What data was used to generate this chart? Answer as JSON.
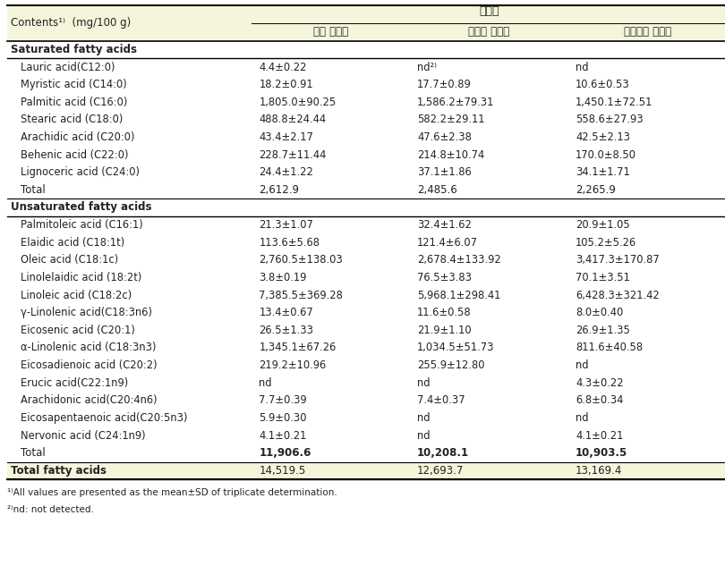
{
  "header_bg": "#f5f5dc",
  "header_text_color": "#333333",
  "body_bg": "#ffffff",
  "section_header_bg": "#ffffff",
  "col0_header": "Contents¹⁾  (mg/100 g)",
  "col_group_header": "청국장",
  "col1_header": "인당 청국장",
  "col2_header": "산양삼 청국장",
  "col3_header": "홍산양삼 청국장",
  "footnote1": "¹⁾All values are presented as the mean±SD of triplicate determination.",
  "footnote2": "²⁾nd: not detected.",
  "rows": [
    {
      "type": "section",
      "col0": "Saturated fatty acids",
      "col1": "",
      "col2": "",
      "col3": ""
    },
    {
      "type": "data",
      "col0": "Lauric acid(C12:0)",
      "col1": "4.4±0.22",
      "col2": "nd²⁾",
      "col3": "nd"
    },
    {
      "type": "data",
      "col0": "Myristic acid (C14:0)",
      "col1": "18.2±0.91",
      "col2": "17.7±0.89",
      "col3": "10.6±0.53"
    },
    {
      "type": "data",
      "col0": "Palmitic acid (C16:0)",
      "col1": "1,805.0±90.25",
      "col2": "1,586.2±79.31",
      "col3": "1,450.1±72.51"
    },
    {
      "type": "data",
      "col0": "Stearic acid (C18:0)",
      "col1": "488.8±24.44",
      "col2": "582.2±29.11",
      "col3": "558.6±27.93"
    },
    {
      "type": "data",
      "col0": "Arachidic acid (C20:0)",
      "col1": "43.4±2.17",
      "col2": "47.6±2.38",
      "col3": "42.5±2.13"
    },
    {
      "type": "data",
      "col0": "Behenic acid (C22:0)",
      "col1": "228.7±11.44",
      "col2": "214.8±10.74",
      "col3": "170.0±8.50"
    },
    {
      "type": "data",
      "col0": "Lignoceric acid (C24:0)",
      "col1": "24.4±1.22",
      "col2": "37.1±1.86",
      "col3": "34.1±1.71"
    },
    {
      "type": "total",
      "col0": "Total",
      "col1": "2,612.9",
      "col2": "2,485.6",
      "col3": "2,265.9"
    },
    {
      "type": "section",
      "col0": "Unsaturated fatty acids",
      "col1": "",
      "col2": "",
      "col3": ""
    },
    {
      "type": "data",
      "col0": "Palmitoleic acid (C16:1)",
      "col1": "21.3±1.07",
      "col2": "32.4±1.62",
      "col3": "20.9±1.05"
    },
    {
      "type": "data",
      "col0": "Elaidic acid (C18:1t)",
      "col1": "113.6±5.68",
      "col2": "121.4±6.07",
      "col3": "105.2±5.26"
    },
    {
      "type": "data",
      "col0": "Oleic acid (C18:1c)",
      "col1": "2,760.5±138.03",
      "col2": "2,678.4±133.92",
      "col3": "3,417.3±170.87"
    },
    {
      "type": "data",
      "col0": "Linolelaidic acid (18:2t)",
      "col1": "3.8±0.19",
      "col2": "76.5±3.83",
      "col3": "70.1±3.51"
    },
    {
      "type": "data",
      "col0": "Linoleic acid (C18:2c)",
      "col1": "7,385.5±369.28",
      "col2": "5,968.1±298.41",
      "col3": "6,428.3±321.42"
    },
    {
      "type": "data",
      "col0": "γ-Linolenic acid(C18:3n6)",
      "col1": "13.4±0.67",
      "col2": "11.6±0.58",
      "col3": "8.0±0.40"
    },
    {
      "type": "data",
      "col0": "Eicosenic acid (C20:1)",
      "col1": "26.5±1.33",
      "col2": "21.9±1.10",
      "col3": "26.9±1.35"
    },
    {
      "type": "data",
      "col0": "α-Linolenic acid (C18:3n3)",
      "col1": "1,345.1±67.26",
      "col2": "1,034.5±51.73",
      "col3": "811.6±40.58"
    },
    {
      "type": "data",
      "col0": "Eicosadienoic acid (C20:2)",
      "col1": "219.2±10.96",
      "col2": "255.9±12.80",
      "col3": "nd"
    },
    {
      "type": "data",
      "col0": "Erucic acid(C22:1n9)",
      "col1": "nd",
      "col2": "nd",
      "col3": "4.3±0.22"
    },
    {
      "type": "data",
      "col0": "Arachidonic acid(C20:4n6)",
      "col1": "7.7±0.39",
      "col2": "7.4±0.37",
      "col3": "6.8±0.34"
    },
    {
      "type": "data",
      "col0": "Eicosapentaenoic acid(C20:5n3)",
      "col1": "5.9±0.30",
      "col2": "nd",
      "col3": "nd"
    },
    {
      "type": "data",
      "col0": "Nervonic acid (C24:1n9)",
      "col1": "4.1±0.21",
      "col2": "nd",
      "col3": "4.1±0.21"
    },
    {
      "type": "total_bold",
      "col0": "Total",
      "col1": "11,906.6",
      "col2": "10,208.1",
      "col3": "10,903.5"
    },
    {
      "type": "grand_total",
      "col0": "Total fatty acids",
      "col1": "14,519.5",
      "col2": "12,693.7",
      "col3": "13,169.4"
    }
  ]
}
